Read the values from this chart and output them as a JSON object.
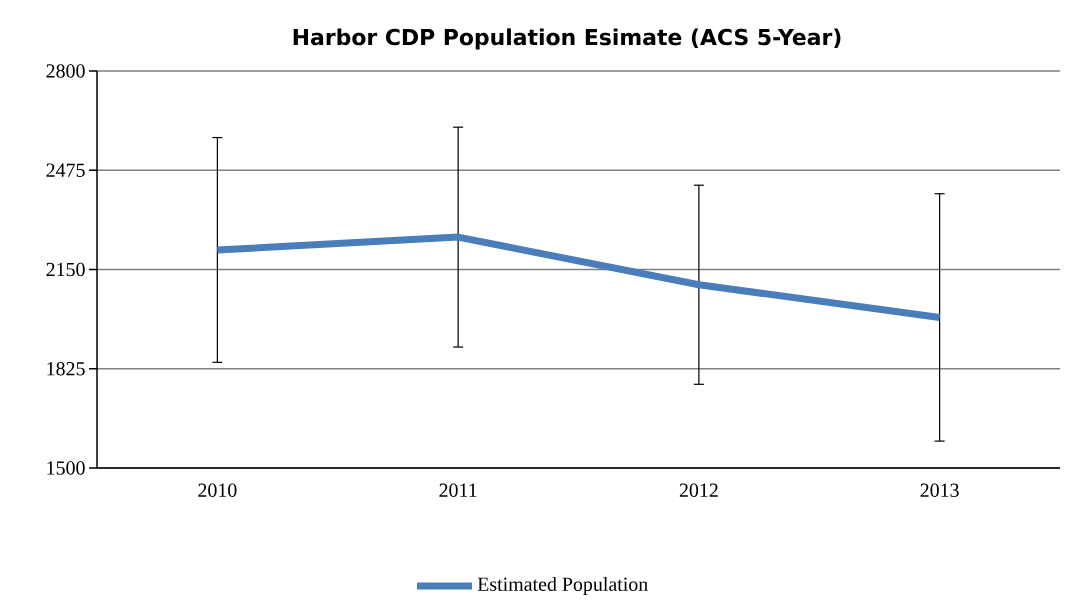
{
  "chart_data": {
    "type": "line",
    "title": "Harbor CDP Population Esimate (ACS 5-Year)",
    "categories": [
      "2010",
      "2011",
      "2012",
      "2013"
    ],
    "series": [
      {
        "name": "Estimated Population",
        "color": "#4a7ebb",
        "values": [
          2214,
          2256,
          2100,
          1993
        ],
        "errors": [
          368,
          360,
          326,
          405
        ]
      }
    ],
    "ylim": [
      1500,
      2800
    ],
    "yticks": [
      1500,
      1825,
      2150,
      2475,
      2800
    ],
    "grid": "y",
    "legend": "bottom",
    "marker": "none",
    "line_style": "solid"
  }
}
